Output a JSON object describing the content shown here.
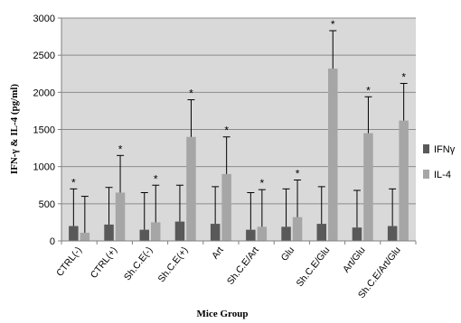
{
  "chart_data": {
    "type": "bar",
    "xlabel": "Mice Group",
    "ylabel": "IFN-γ & IL-4 (pg/ml)",
    "ylim": [
      0,
      3000
    ],
    "yticks": [
      "0",
      "500",
      "1000",
      "1500",
      "2000",
      "2500",
      "3000"
    ],
    "ytick_values": [
      0,
      500,
      1000,
      1500,
      2000,
      2500,
      3000
    ],
    "grid": true,
    "legend_position": "right",
    "categories": [
      "CTRL(-)",
      "CTRL(+)",
      "Sh.C.E(-)",
      "Sh.C.E(+)",
      "Art",
      "Sh.C.E/Art",
      "Glu",
      "Sh.C.E/Glu",
      "Art/Glu",
      "Sh.C.E/Art/Glu"
    ],
    "series": [
      {
        "name": "IFNγ",
        "color": "#595959",
        "values": [
          200,
          220,
          150,
          260,
          230,
          150,
          190,
          230,
          180,
          200
        ],
        "error_upper": [
          700,
          720,
          650,
          750,
          730,
          650,
          700,
          730,
          680,
          700
        ]
      },
      {
        "name": "IL-4",
        "color": "#a6a6a6",
        "values": [
          110,
          650,
          250,
          1400,
          900,
          190,
          320,
          2320,
          1450,
          1620
        ],
        "error_upper": [
          600,
          1150,
          750,
          1900,
          1400,
          690,
          820,
          2830,
          1940,
          2120
        ]
      }
    ],
    "annotations": [
      "*",
      "*",
      "*",
      "*",
      "*",
      "*",
      "*",
      "*",
      "*",
      "*"
    ]
  }
}
